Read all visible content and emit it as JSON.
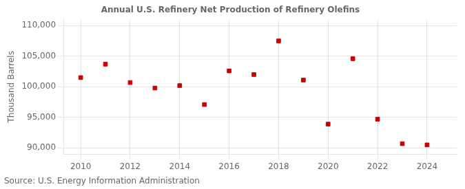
{
  "chart_data": {
    "type": "scatter",
    "title": "Annual U.S. Refinery Net Production of Refinery Olefins",
    "ylabel": "Thousand Barrels",
    "annotations": [
      "Source: U.S. Energy Information Administration"
    ],
    "x": [
      2010,
      2011,
      2012,
      2013,
      2014,
      2015,
      2016,
      2017,
      2018,
      2019,
      2020,
      2021,
      2022,
      2023,
      2024
    ],
    "values": [
      101500,
      103700,
      100700,
      99800,
      100200,
      97100,
      102600,
      102000,
      107500,
      101100,
      93900,
      104600,
      94700,
      90700,
      90500
    ],
    "color": "#cc0000",
    "marker": "square",
    "xlim": [
      2009.3,
      2025.2
    ],
    "xticks": [
      2010,
      2012,
      2014,
      2016,
      2018,
      2020,
      2022,
      2024
    ],
    "ylim": [
      89000,
      111000
    ],
    "yticks": [
      {
        "value": 90000,
        "label": "90,000"
      },
      {
        "value": 95000,
        "label": "95,000"
      },
      {
        "value": 100000,
        "label": "100,000"
      },
      {
        "value": 105000,
        "label": "105,000"
      },
      {
        "value": 110000,
        "label": "110,000"
      }
    ],
    "grid": true
  }
}
